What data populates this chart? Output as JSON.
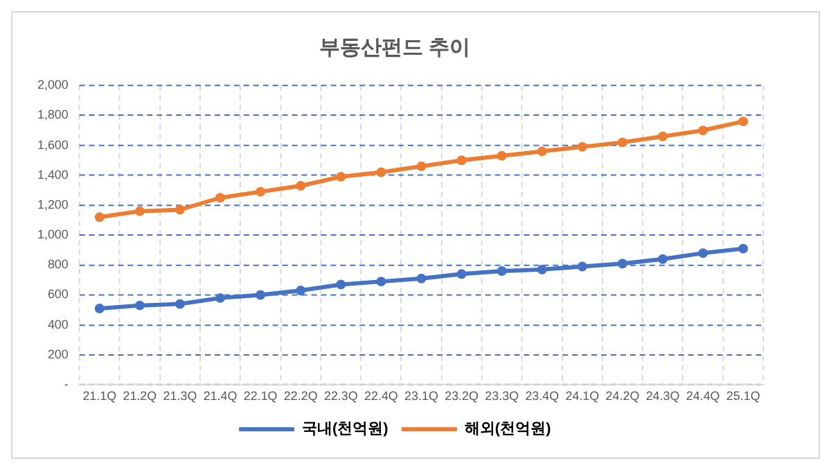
{
  "chart_data": {
    "type": "line",
    "title": "부동산펀드 추이",
    "categories": [
      "21.1Q",
      "21.2Q",
      "21.3Q",
      "21.4Q",
      "22.1Q",
      "22.2Q",
      "22.3Q",
      "22.4Q",
      "23.1Q",
      "23.2Q",
      "23.3Q",
      "23.4Q",
      "24.1Q",
      "24.2Q",
      "24.3Q",
      "24.4Q",
      "25.1Q"
    ],
    "series": [
      {
        "name": "국내(천억원)",
        "color": "#4472c4",
        "values": [
          510,
          530,
          540,
          580,
          600,
          630,
          670,
          690,
          710,
          740,
          760,
          770,
          790,
          810,
          840,
          880,
          910
        ]
      },
      {
        "name": "해외(천억원)",
        "color": "#ed7d31",
        "values": [
          1120,
          1160,
          1170,
          1250,
          1290,
          1330,
          1390,
          1420,
          1460,
          1500,
          1530,
          1560,
          1590,
          1620,
          1660,
          1700,
          1760
        ]
      }
    ],
    "ylim": [
      0,
      2000
    ],
    "yticks": [
      {
        "value": 0,
        "label": "-"
      },
      200,
      400,
      600,
      800,
      {
        "value": 1000,
        "label": "1,000"
      },
      {
        "value": 1200,
        "label": "1,200"
      },
      {
        "value": 1400,
        "label": "1,400"
      },
      {
        "value": 1600,
        "label": "1,600"
      },
      {
        "value": 1800,
        "label": "1,800"
      },
      {
        "value": 2000,
        "label": "2,000"
      }
    ],
    "grid": true,
    "legend": "bottom",
    "marker": "circle",
    "line_style": "solid"
  }
}
